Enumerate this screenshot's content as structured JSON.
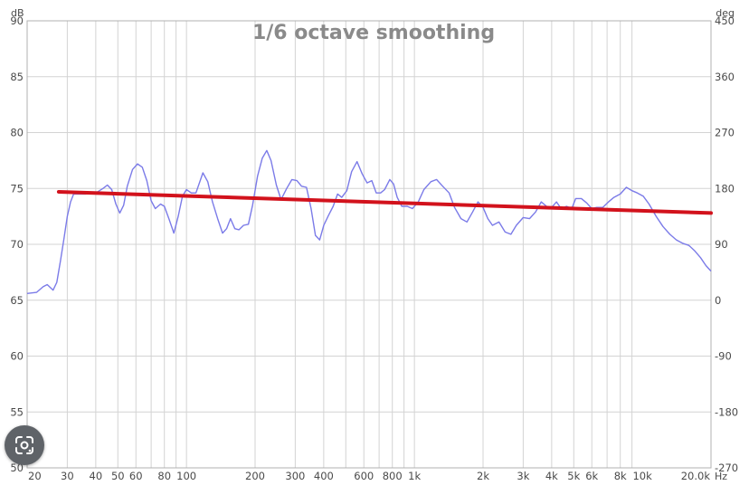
{
  "chart_data": {
    "type": "line",
    "title": "1/6 octave smoothing",
    "xlabel": "Hz",
    "ylabel": "dB",
    "y2label": "deg",
    "xscale": "log",
    "xlim": [
      20,
      20000
    ],
    "ylim": [
      50,
      90
    ],
    "y2lim": [
      -270,
      450
    ],
    "grid": true,
    "legend": "none",
    "x_tick_values": [
      20,
      30,
      40,
      50,
      60,
      80,
      100,
      200,
      300,
      400,
      600,
      800,
      1000,
      2000,
      3000,
      4000,
      5000,
      6000,
      8000,
      10000,
      20000
    ],
    "x_tick_labels": [
      "20",
      "30",
      "40",
      "50",
      "60",
      "80",
      "100",
      "200",
      "300",
      "400",
      "600",
      "800",
      "1k",
      "2k",
      "3k",
      "4k",
      "5k",
      "6k",
      "8k",
      "10k",
      "20.0k"
    ],
    "y_ticks": [
      "90",
      "85",
      "80",
      "75",
      "70",
      "65",
      "60",
      "55",
      "50"
    ],
    "y2_ticks": [
      "450",
      "360",
      "270",
      "180",
      "90",
      "0",
      "-90",
      "-180",
      "-270"
    ],
    "colors": {
      "response": "#7b7be8",
      "trend": "#d2121c",
      "grid": "#d3d3d3",
      "border": "#b0b0b0"
    },
    "series": [
      {
        "values": [
          [
            20,
            65.6
          ],
          [
            22,
            65.7
          ],
          [
            23.5,
            66.2
          ],
          [
            24.5,
            66.4
          ],
          [
            26,
            65.9
          ],
          [
            27,
            66.6
          ],
          [
            28,
            68.5
          ],
          [
            29,
            70.5
          ],
          [
            30,
            72.5
          ],
          [
            31,
            73.8
          ],
          [
            32,
            74.5
          ],
          [
            34,
            74.5
          ],
          [
            36,
            74.5
          ],
          [
            40,
            74.6
          ],
          [
            43,
            75.0
          ],
          [
            45,
            75.3
          ],
          [
            47,
            74.9
          ],
          [
            49,
            73.6
          ],
          [
            51,
            72.8
          ],
          [
            53,
            73.5
          ],
          [
            55,
            75.2
          ],
          [
            58,
            76.7
          ],
          [
            61,
            77.2
          ],
          [
            64,
            76.9
          ],
          [
            67,
            75.7
          ],
          [
            70,
            73.9
          ],
          [
            73,
            73.2
          ],
          [
            77,
            73.6
          ],
          [
            80,
            73.4
          ],
          [
            84,
            72.2
          ],
          [
            88,
            71.0
          ],
          [
            92,
            72.5
          ],
          [
            96,
            74.3
          ],
          [
            100,
            74.9
          ],
          [
            105,
            74.6
          ],
          [
            110,
            74.6
          ],
          [
            118,
            76.4
          ],
          [
            124,
            75.6
          ],
          [
            130,
            73.8
          ],
          [
            137,
            72.3
          ],
          [
            144,
            71.0
          ],
          [
            150,
            71.4
          ],
          [
            156,
            72.3
          ],
          [
            163,
            71.4
          ],
          [
            170,
            71.3
          ],
          [
            178,
            71.7
          ],
          [
            187,
            71.8
          ],
          [
            195,
            73.5
          ],
          [
            205,
            76.1
          ],
          [
            215,
            77.7
          ],
          [
            225,
            78.4
          ],
          [
            235,
            77.5
          ],
          [
            248,
            75.3
          ],
          [
            260,
            74.0
          ],
          [
            275,
            75.0
          ],
          [
            290,
            75.8
          ],
          [
            305,
            75.7
          ],
          [
            320,
            75.2
          ],
          [
            336,
            75.1
          ],
          [
            352,
            73.2
          ],
          [
            368,
            70.8
          ],
          [
            384,
            70.4
          ],
          [
            400,
            71.7
          ],
          [
            420,
            72.6
          ],
          [
            440,
            73.4
          ],
          [
            460,
            74.5
          ],
          [
            480,
            74.2
          ],
          [
            505,
            74.8
          ],
          [
            530,
            76.5
          ],
          [
            560,
            77.4
          ],
          [
            590,
            76.3
          ],
          [
            620,
            75.5
          ],
          [
            650,
            75.7
          ],
          [
            680,
            74.6
          ],
          [
            710,
            74.6
          ],
          [
            740,
            74.9
          ],
          [
            780,
            75.8
          ],
          [
            810,
            75.4
          ],
          [
            840,
            74.2
          ],
          [
            880,
            73.4
          ],
          [
            930,
            73.4
          ],
          [
            980,
            73.2
          ],
          [
            1040,
            73.8
          ],
          [
            1100,
            74.9
          ],
          [
            1180,
            75.6
          ],
          [
            1250,
            75.8
          ],
          [
            1330,
            75.2
          ],
          [
            1420,
            74.6
          ],
          [
            1500,
            73.3
          ],
          [
            1600,
            72.3
          ],
          [
            1700,
            72.0
          ],
          [
            1800,
            72.9
          ],
          [
            1900,
            73.8
          ],
          [
            2000,
            73.3
          ],
          [
            2100,
            72.3
          ],
          [
            2200,
            71.7
          ],
          [
            2350,
            72.0
          ],
          [
            2500,
            71.1
          ],
          [
            2650,
            70.9
          ],
          [
            2800,
            71.7
          ],
          [
            3000,
            72.4
          ],
          [
            3200,
            72.3
          ],
          [
            3400,
            72.9
          ],
          [
            3600,
            73.8
          ],
          [
            3800,
            73.4
          ],
          [
            4000,
            73.3
          ],
          [
            4200,
            73.8
          ],
          [
            4400,
            73.2
          ],
          [
            4650,
            73.4
          ],
          [
            4900,
            73.2
          ],
          [
            5100,
            74.1
          ],
          [
            5400,
            74.1
          ],
          [
            5700,
            73.7
          ],
          [
            6000,
            73.2
          ],
          [
            6300,
            73.3
          ],
          [
            6700,
            73.3
          ],
          [
            7100,
            73.8
          ],
          [
            7500,
            74.2
          ],
          [
            8000,
            74.5
          ],
          [
            8500,
            75.1
          ],
          [
            9000,
            74.8
          ],
          [
            9500,
            74.6
          ],
          [
            10100,
            74.3
          ],
          [
            10700,
            73.6
          ],
          [
            11500,
            72.5
          ],
          [
            12300,
            71.6
          ],
          [
            13200,
            70.9
          ],
          [
            14100,
            70.4
          ],
          [
            15000,
            70.1
          ],
          [
            16000,
            69.9
          ],
          [
            17000,
            69.4
          ],
          [
            18000,
            68.8
          ],
          [
            19000,
            68.1
          ],
          [
            20000,
            67.6
          ]
        ]
      },
      {
        "values": [
          [
            27.5,
            74.7
          ],
          [
            20000,
            72.8
          ]
        ]
      }
    ]
  },
  "ui": {
    "lens_icon": "google-lens-icon"
  }
}
